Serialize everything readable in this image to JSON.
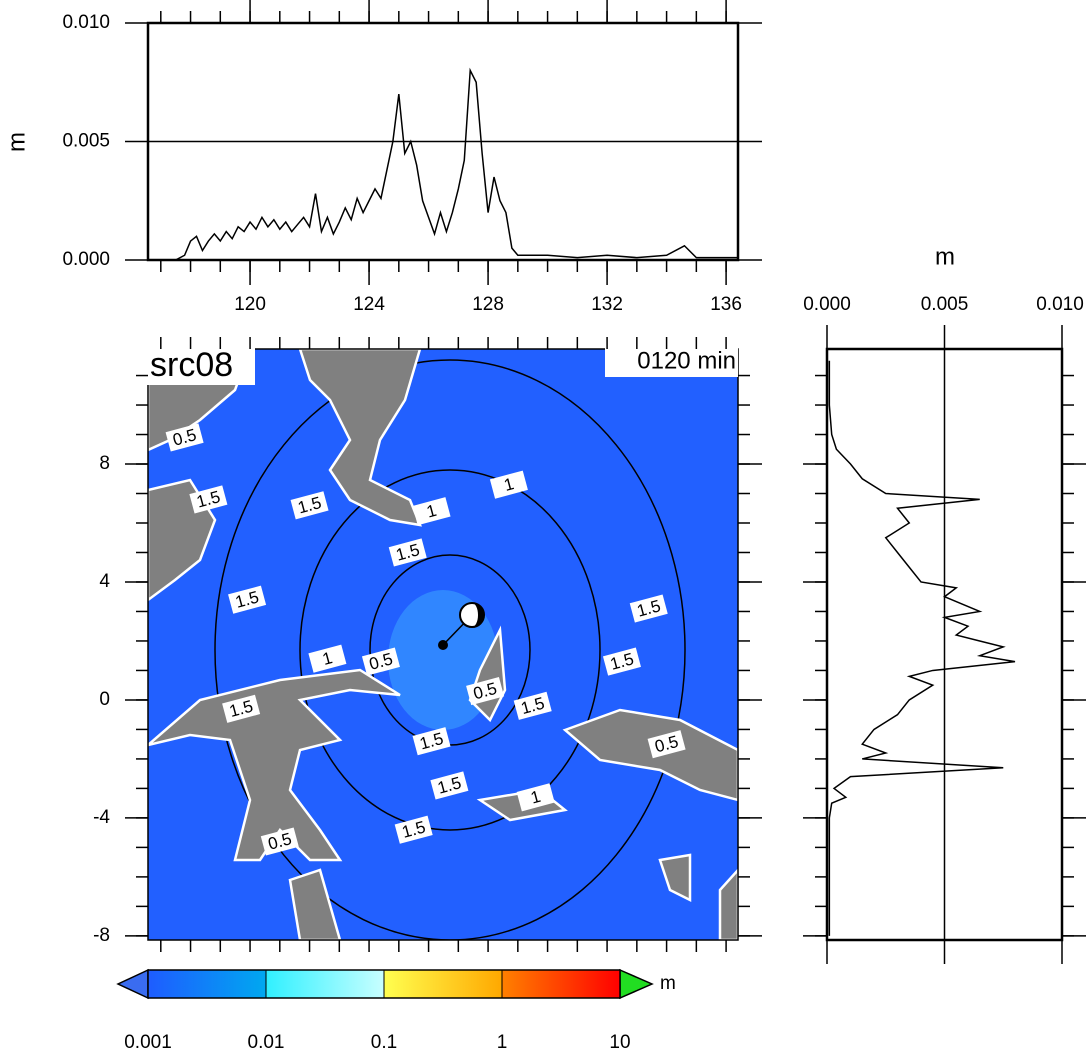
{
  "chart_data": [
    {
      "type": "line",
      "ylabel": "m",
      "x": [
        117.0,
        117.5,
        117.8,
        118.0,
        118.2,
        118.4,
        118.6,
        118.8,
        119.0,
        119.2,
        119.4,
        119.6,
        119.8,
        120.0,
        120.2,
        120.4,
        120.6,
        120.8,
        121.0,
        121.2,
        121.4,
        121.6,
        121.8,
        122.0,
        122.2,
        122.4,
        122.6,
        122.8,
        123.0,
        123.2,
        123.4,
        123.6,
        123.8,
        124.0,
        124.2,
        124.4,
        124.6,
        124.8,
        125.0,
        125.2,
        125.4,
        125.6,
        125.8,
        126.0,
        126.2,
        126.4,
        126.6,
        126.8,
        127.0,
        127.2,
        127.4,
        127.6,
        127.8,
        128.0,
        128.2,
        128.4,
        128.6,
        128.8,
        129.0,
        130.0,
        131.0,
        132.0,
        133.0,
        134.0,
        134.6,
        135.0,
        136.0,
        136.4
      ],
      "values": [
        0,
        0,
        0.0002,
        0.0008,
        0.001,
        0.0004,
        0.0008,
        0.0011,
        0.0008,
        0.0012,
        0.0009,
        0.0014,
        0.0012,
        0.0016,
        0.0013,
        0.0018,
        0.0014,
        0.0017,
        0.0013,
        0.0016,
        0.0012,
        0.0015,
        0.0018,
        0.0014,
        0.0028,
        0.0012,
        0.0018,
        0.0011,
        0.0016,
        0.0022,
        0.0017,
        0.0026,
        0.002,
        0.0025,
        0.003,
        0.0026,
        0.0038,
        0.005,
        0.007,
        0.0045,
        0.005,
        0.004,
        0.0025,
        0.0018,
        0.0011,
        0.002,
        0.0012,
        0.002,
        0.003,
        0.0042,
        0.008,
        0.0075,
        0.0045,
        0.002,
        0.0035,
        0.0025,
        0.002,
        0.0005,
        0.0002,
        0.0002,
        0.0001,
        0.0002,
        0.0001,
        0.0002,
        0.0006,
        0.0001,
        0.0001,
        0.0001
      ],
      "color": "#000000",
      "xlim": [
        116.57,
        136.4
      ],
      "xticks": [
        120,
        124,
        128,
        132,
        136
      ],
      "ylim": [
        0,
        0.01
      ],
      "yticks": [
        {
          "value": 0,
          "label": "0.000"
        },
        {
          "value": 0.005,
          "label": "0.005"
        },
        {
          "value": 0.01,
          "label": "0.010"
        }
      ],
      "grid": true
    },
    {
      "type": "map",
      "title": "src08",
      "subtitle": "0120 min",
      "xlim": [
        116.57,
        136.4
      ],
      "ylim": [
        -8.14,
        11.9
      ],
      "yticks": [
        -8,
        -4,
        0,
        4,
        8
      ],
      "ocean_color": "#2260ff",
      "land_color": "#808080",
      "contour_labels": [
        {
          "text": "0.5",
          "x": 117.8,
          "y": 8.9
        },
        {
          "text": "1.5",
          "x": 118.6,
          "y": 6.8
        },
        {
          "text": "1.5",
          "x": 122.0,
          "y": 6.6
        },
        {
          "text": "1",
          "x": 128.7,
          "y": 7.3
        },
        {
          "text": "1.5",
          "x": 125.3,
          "y": 5.0
        },
        {
          "text": "1",
          "x": 126.1,
          "y": 6.4
        },
        {
          "text": "1.5",
          "x": 119.9,
          "y": 3.4
        },
        {
          "text": "1.5",
          "x": 133.4,
          "y": 3.1
        },
        {
          "text": "1.5",
          "x": 132.5,
          "y": 1.3
        },
        {
          "text": "1",
          "x": 122.6,
          "y": 1.4
        },
        {
          "text": "0.5",
          "x": 124.4,
          "y": 1.3
        },
        {
          "text": "1.5",
          "x": 119.7,
          "y": -0.3
        },
        {
          "text": "1.5",
          "x": 129.5,
          "y": -0.2
        },
        {
          "text": "1.5",
          "x": 126.1,
          "y": -1.4
        },
        {
          "text": "0.5",
          "x": 127.9,
          "y": 0.3
        },
        {
          "text": "1.5",
          "x": 126.7,
          "y": -2.9
        },
        {
          "text": "1",
          "x": 129.6,
          "y": -3.3
        },
        {
          "text": "0.5",
          "x": 134.0,
          "y": -1.5
        },
        {
          "text": "1.5",
          "x": 125.5,
          "y": -4.4
        },
        {
          "text": "0.5",
          "x": 121.0,
          "y": -4.8
        }
      ]
    },
    {
      "type": "profile",
      "xlabel": "m",
      "y": [
        11.5,
        10,
        9,
        8.5,
        8,
        7.5,
        7,
        6.8,
        6.5,
        6,
        5.5,
        5,
        4.5,
        4,
        3.8,
        3.5,
        3,
        2.8,
        2.5,
        2.2,
        2,
        1.8,
        1.5,
        1.3,
        1.0,
        0.8,
        0.5,
        0,
        -0.5,
        -1,
        -1.5,
        -1.8,
        -2,
        -2.3,
        -2.6,
        -3,
        -3.3,
        -3.5,
        -4,
        -6,
        -8
      ],
      "values": [
        0.0001,
        0.0001,
        0.0002,
        0.0004,
        0.001,
        0.0015,
        0.0025,
        0.0065,
        0.003,
        0.0035,
        0.0025,
        0.003,
        0.0035,
        0.004,
        0.0055,
        0.005,
        0.0065,
        0.005,
        0.006,
        0.0055,
        0.0065,
        0.0075,
        0.0065,
        0.008,
        0.0045,
        0.0035,
        0.0045,
        0.0035,
        0.003,
        0.002,
        0.0015,
        0.0025,
        0.0015,
        0.0075,
        0.001,
        0.0003,
        0.0008,
        0.0002,
        0.0001,
        0.0001,
        0.0001
      ],
      "color": "#000000",
      "xlim": [
        0,
        0.01
      ],
      "xticks": [
        {
          "value": 0,
          "label": "0.000"
        },
        {
          "value": 0.005,
          "label": "0.005"
        },
        {
          "value": 0.01,
          "label": "0.010"
        }
      ],
      "ylim": [
        -8.14,
        11.9
      ],
      "yticks": [
        -8,
        -4,
        0,
        4,
        8
      ],
      "grid": true
    },
    {
      "type": "colorbar",
      "label": "m",
      "log": true,
      "ticks": [
        0.001,
        0.01,
        0.1,
        1,
        10
      ],
      "segment_colors": [
        [
          "#1e5cff",
          "#00a8f0"
        ],
        [
          "#30f0ff",
          "#c8ffff"
        ],
        [
          "#ffff50",
          "#ffa800"
        ],
        [
          "#ff8000",
          "#ff0000"
        ]
      ],
      "under_color": "#3a6cf0",
      "over_color": "#22dd22"
    }
  ]
}
